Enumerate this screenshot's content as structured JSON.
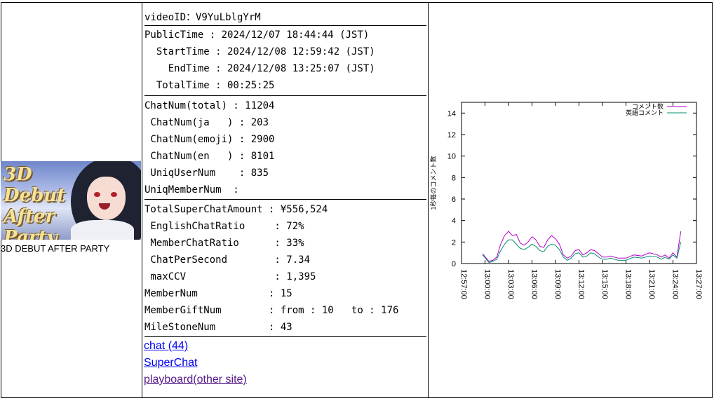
{
  "thumbnail": {
    "caption": "3D DEBUT AFTER PARTY",
    "art_text": "3D Debut After Party"
  },
  "info": {
    "video_id": "videoID：V9YuLblgYrM",
    "times": [
      "PublicTime : 2024/12/07 18:44:44 (JST)",
      "  StartTime : 2024/12/08 12:59:42 (JST)",
      "    EndTime : 2024/12/08 13:25:07 (JST)",
      "  TotalTime : 00:25:25"
    ],
    "chat_counts": [
      "ChatNum(total) : 11204",
      " ChatNum(ja   ) : 203",
      " ChatNum(emoji) : 2900",
      " ChatNum(en   ) : 8101",
      " UniqUserNum    : 835",
      "UniqMemberNum  :"
    ],
    "stats": [
      "TotalSuperChatAmount : ¥556,524",
      " EnglishChatRatio     : 72%",
      " MemberChatRatio      : 33%",
      " ChatPerSecond        : 7.34",
      " maxCCV               : 1,395",
      "MemberNum            : 15",
      "MemberGiftNum        : from : 10   to : 176",
      "MileStoneNum         : 43"
    ]
  },
  "links": [
    {
      "label": "chat (44)",
      "visited": false
    },
    {
      "label": "SuperChat",
      "visited": false
    },
    {
      "label": "playboard(other site)",
      "visited": true
    }
  ],
  "chart_data": {
    "type": "line",
    "title": "",
    "xlabel": "",
    "ylabel": "1秒毎のコメント数",
    "ylim": [
      0,
      15
    ],
    "yticks": [
      0,
      2,
      4,
      6,
      8,
      10,
      12,
      14
    ],
    "xlim": [
      "12:57:00",
      "13:27:00"
    ],
    "xticks": [
      "12:57:00",
      "13:00:00",
      "13:03:00",
      "13:06:00",
      "13:09:00",
      "13:12:00",
      "13:15:00",
      "13:18:00",
      "13:21:00",
      "13:24:00",
      "13:27:00"
    ],
    "legend_position": "top-right",
    "grid": false,
    "colors": {
      "comments": "#b000c8",
      "english": "#008f6b"
    },
    "x": [
      "12:59:42",
      "13:00:30",
      "13:01:00",
      "13:01:30",
      "13:02:00",
      "13:02:30",
      "13:03:00",
      "13:03:30",
      "13:04:00",
      "13:04:30",
      "13:05:00",
      "13:05:30",
      "13:06:00",
      "13:06:30",
      "13:07:00",
      "13:07:30",
      "13:08:00",
      "13:08:30",
      "13:09:00",
      "13:09:30",
      "13:10:00",
      "13:10:30",
      "13:11:00",
      "13:11:30",
      "13:12:00",
      "13:12:30",
      "13:13:00",
      "13:13:30",
      "13:14:00",
      "13:14:30",
      "13:15:00",
      "13:15:30",
      "13:16:00",
      "13:17:00",
      "13:18:00",
      "13:19:00",
      "13:20:00",
      "13:21:00",
      "13:22:00",
      "13:22:30",
      "13:23:00",
      "13:23:30",
      "13:24:00",
      "13:24:30",
      "13:25:00"
    ],
    "series": [
      {
        "name": "コメント数",
        "values": [
          0.9,
          0.2,
          0.3,
          0.6,
          1.8,
          2.6,
          3.0,
          2.6,
          2.7,
          1.9,
          1.7,
          2.0,
          2.5,
          2.2,
          1.6,
          1.5,
          2.2,
          2.6,
          2.3,
          1.8,
          0.8,
          0.5,
          0.7,
          1.2,
          1.3,
          0.8,
          1.0,
          1.3,
          1.2,
          0.9,
          0.6,
          0.6,
          0.7,
          0.5,
          0.5,
          0.8,
          0.7,
          1.0,
          0.8,
          0.6,
          0.8,
          0.5,
          1.0,
          0.6,
          3.0
        ]
      },
      {
        "name": "英語コメント",
        "values": [
          0.8,
          0.1,
          0.2,
          0.4,
          1.2,
          1.8,
          2.2,
          2.2,
          1.8,
          1.4,
          1.3,
          1.5,
          1.8,
          1.6,
          1.2,
          1.1,
          1.6,
          1.8,
          1.7,
          1.3,
          0.6,
          0.3,
          0.5,
          0.9,
          1.0,
          0.6,
          0.7,
          1.0,
          0.9,
          0.6,
          0.4,
          0.4,
          0.5,
          0.3,
          0.3,
          0.6,
          0.5,
          0.7,
          0.6,
          0.4,
          0.6,
          0.4,
          0.8,
          0.5,
          2.0
        ]
      }
    ]
  }
}
